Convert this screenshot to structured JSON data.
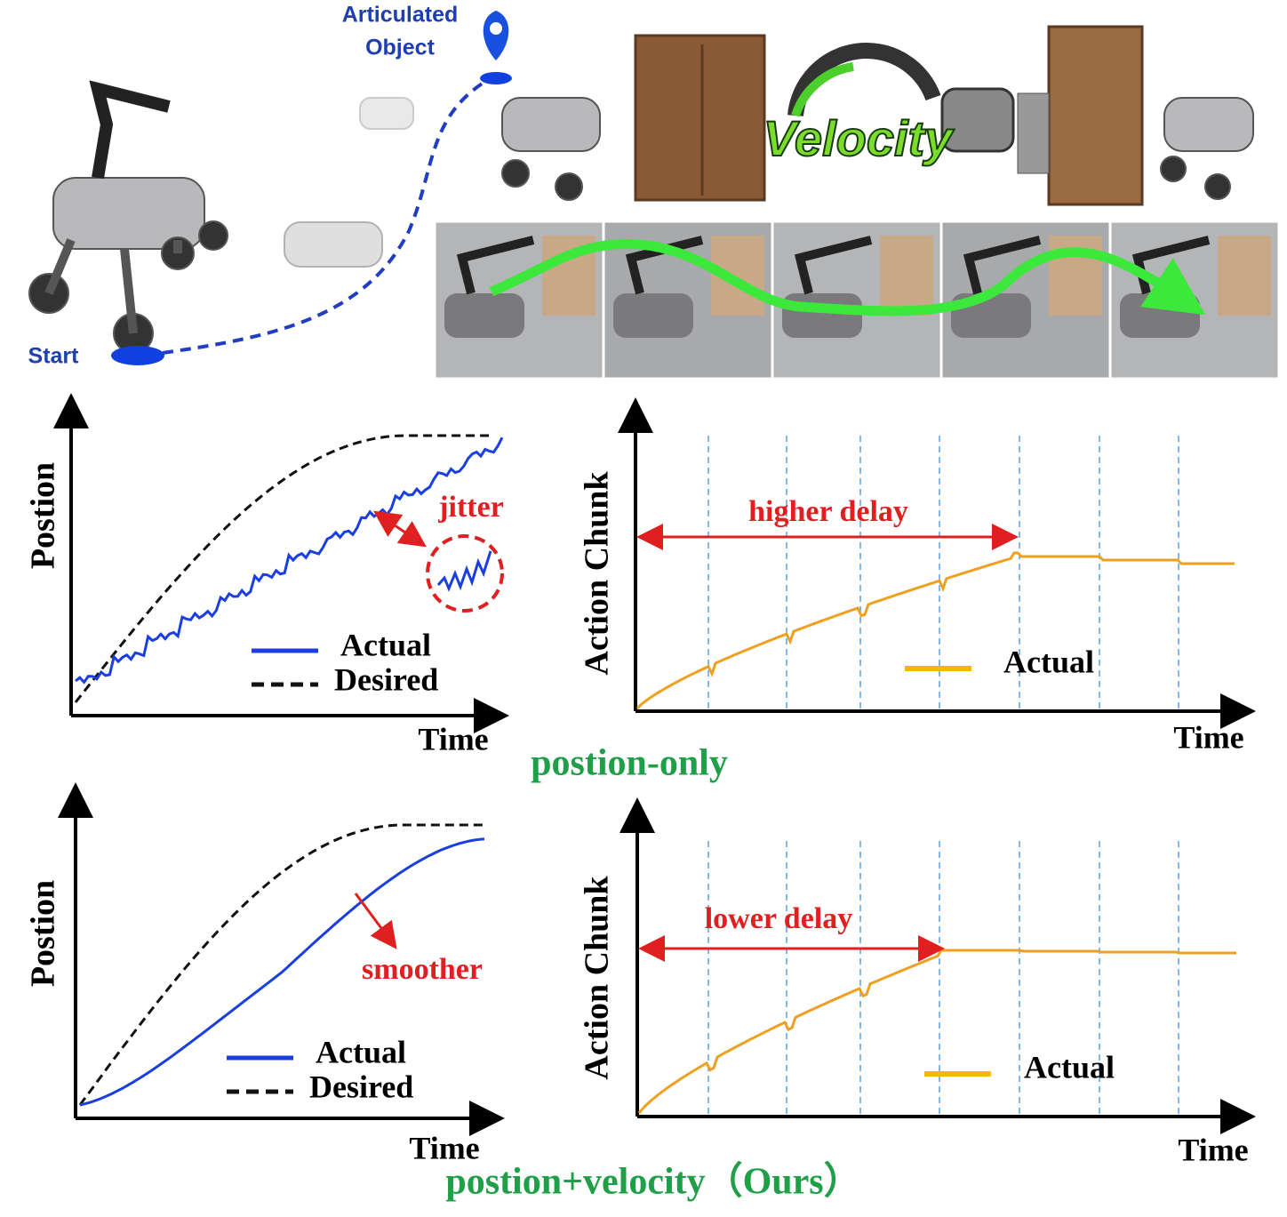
{
  "top": {
    "target_label": [
      "Articulated",
      "Object"
    ],
    "start_label": "Start",
    "logo": "Velocity"
  },
  "rows": [
    {
      "caption": "postion-only",
      "position_plot": {
        "y_label": "Postion",
        "x_label": "Time",
        "annotation": "jitter",
        "legend": [
          "Actual",
          "Desired"
        ]
      },
      "chunk_plot": {
        "y_label": "Action Chunk",
        "x_label": "Time",
        "annotation": "higher delay",
        "legend": [
          "Actual"
        ]
      }
    },
    {
      "caption": "postion+velocity（Ours）",
      "position_plot": {
        "y_label": "Postion",
        "x_label": "Time",
        "annotation": "smoother",
        "legend": [
          "Actual",
          "Desired"
        ]
      },
      "chunk_plot": {
        "y_label": "Action Chunk",
        "x_label": "Time",
        "annotation": "lower delay",
        "legend": [
          "Actual"
        ]
      }
    }
  ]
}
